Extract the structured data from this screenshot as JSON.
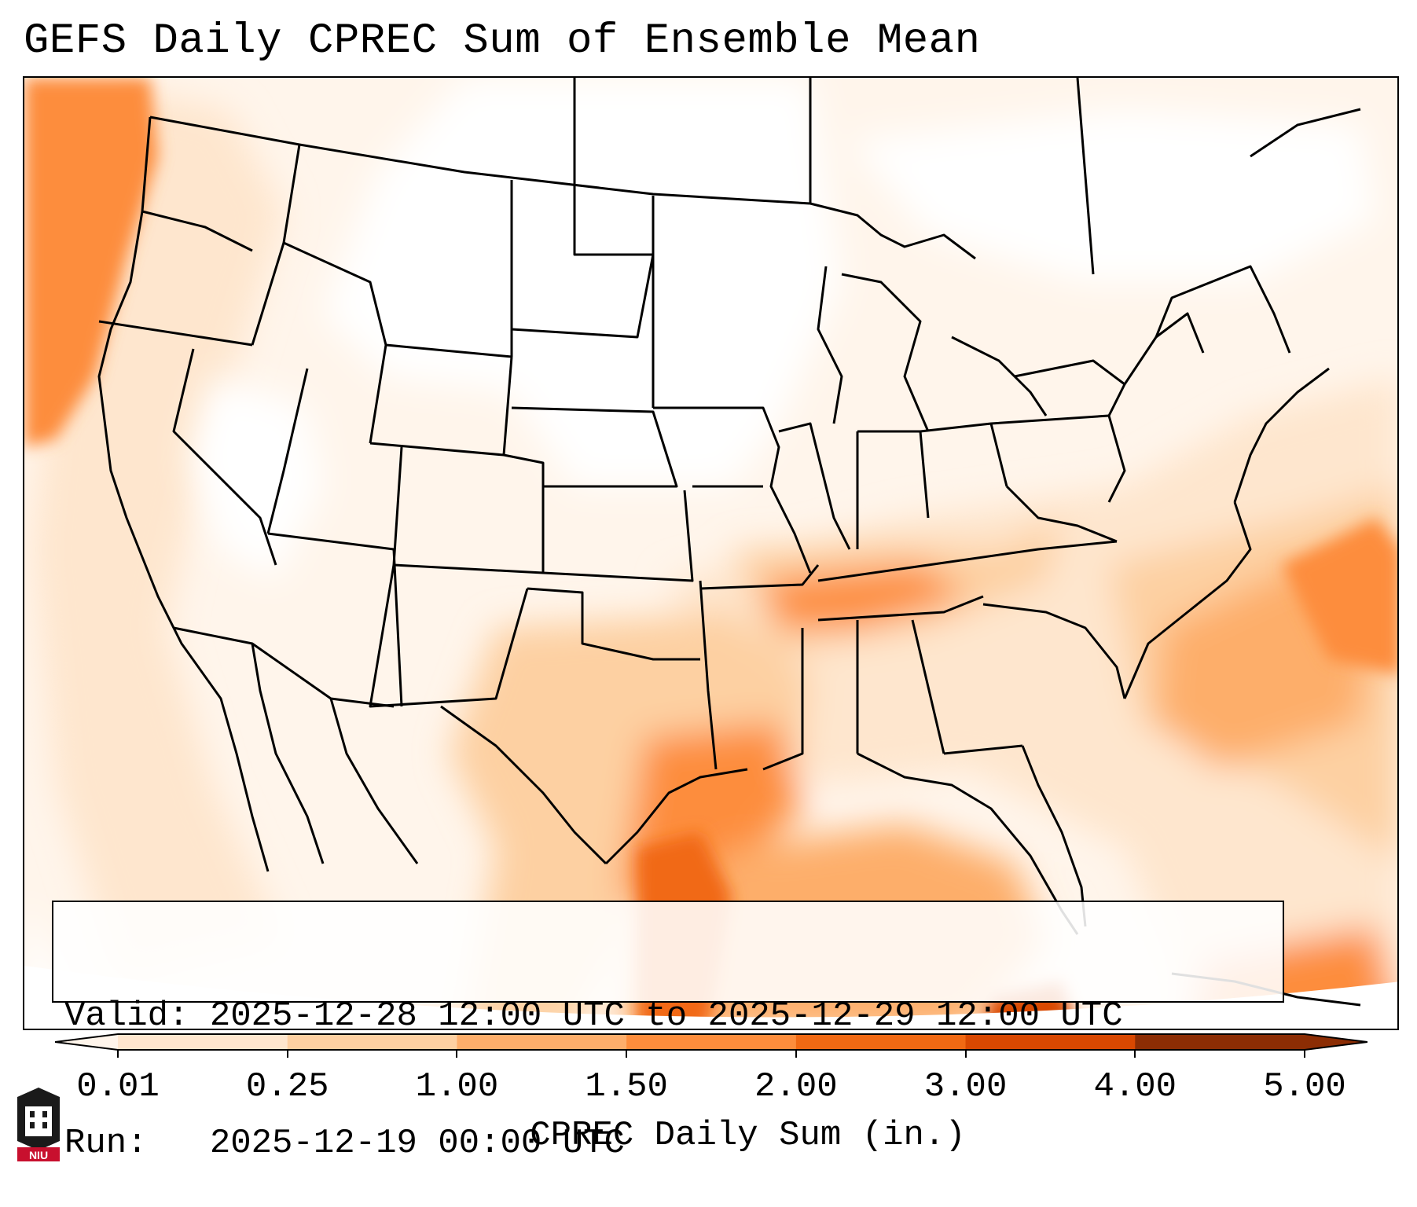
{
  "title": "GEFS Daily CPREC Sum of Ensemble Mean",
  "info": {
    "valid_line": "Valid: 2025-12-28 12:00 UTC to 2025-12-29 12:00 UTC",
    "run_line": "Run:   2025-12-19 00:00 UTC"
  },
  "colorbar": {
    "label": "CPREC Daily Sum (in.)",
    "ticks": [
      "0.01",
      "0.25",
      "1.00",
      "1.50",
      "2.00",
      "3.00",
      "4.00",
      "5.00"
    ],
    "colors": [
      "#fff5eb",
      "#fee6ce",
      "#fdd0a2",
      "#fdae6b",
      "#fd8d3c",
      "#f16913",
      "#d94801",
      "#8c2d04"
    ],
    "extend": "both"
  },
  "logo": {
    "text": "NIU",
    "color": "#c8102e"
  },
  "map": {
    "projection": "Lambert Conformal",
    "region": "Contiguous United States",
    "background": "#ffffff",
    "border_color": "#000000"
  }
}
